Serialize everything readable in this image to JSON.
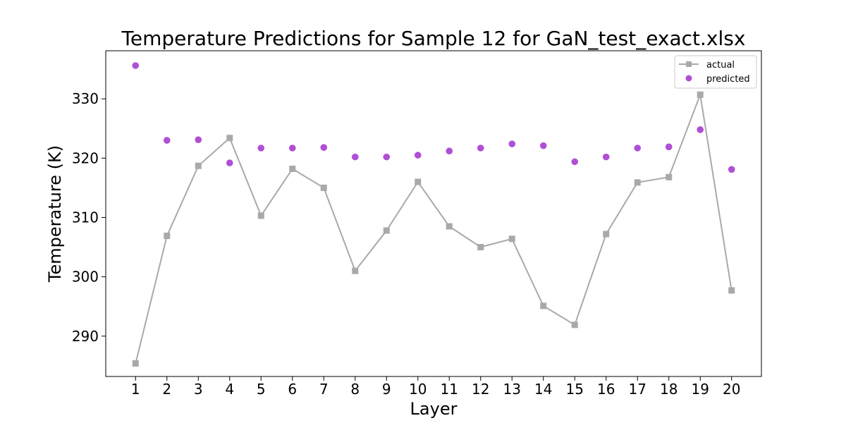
{
  "chart_data": {
    "type": "line",
    "title": "Temperature Predictions for Sample 12 for GaN_test_exact.xlsx",
    "xlabel": "Layer",
    "ylabel": "Temperature (K)",
    "x": [
      1,
      2,
      3,
      4,
      5,
      6,
      7,
      8,
      9,
      10,
      11,
      12,
      13,
      14,
      15,
      16,
      17,
      18,
      19,
      20
    ],
    "xlim": [
      0.05,
      20.95
    ],
    "ylim": [
      283.2,
      338.1
    ],
    "yticks": [
      290,
      300,
      310,
      320,
      330
    ],
    "grid": false,
    "legend_position": "upper-right",
    "series": [
      {
        "name": "actual",
        "style": "line-square",
        "color": "#a9a9a9",
        "values": [
          285.4,
          306.9,
          318.7,
          323.4,
          310.3,
          318.2,
          315.0,
          301.0,
          307.8,
          316.0,
          308.5,
          305.0,
          306.4,
          295.1,
          291.9,
          307.2,
          315.9,
          316.8,
          330.7,
          297.7
        ]
      },
      {
        "name": "predicted",
        "style": "scatter-circle",
        "color": "#b04fd6",
        "values": [
          335.6,
          323.0,
          323.1,
          319.2,
          321.7,
          321.7,
          321.8,
          320.2,
          320.2,
          320.5,
          321.2,
          321.7,
          322.4,
          322.1,
          319.4,
          320.2,
          321.7,
          321.9,
          324.8,
          318.1
        ]
      }
    ]
  }
}
